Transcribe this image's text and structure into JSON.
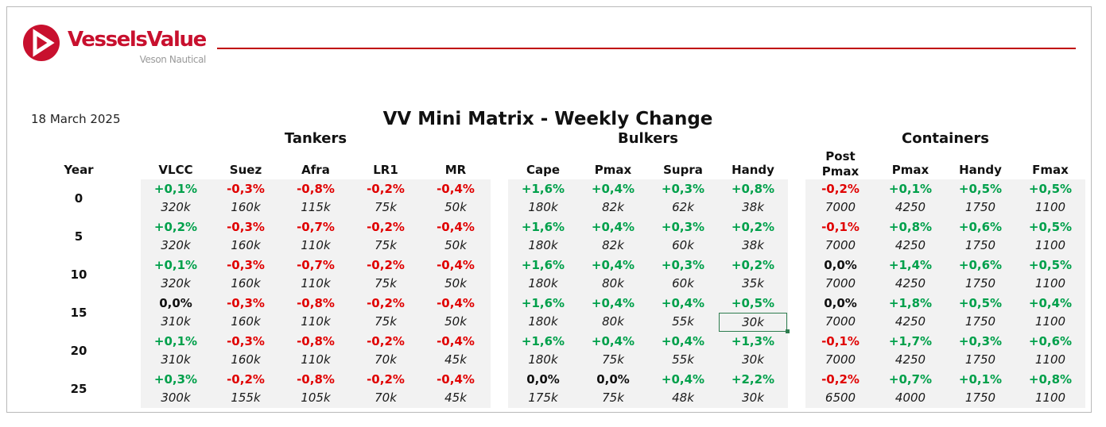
{
  "brand": {
    "name": "VesselsValue",
    "sub": "Veson Nautical",
    "color": "#c8102e"
  },
  "date": "18 March 2025",
  "title": "VV Mini Matrix - Weekly Change",
  "year_header": "Year",
  "colors": {
    "positive": "#00a04b",
    "negative": "#e00000",
    "neutral": "#111111",
    "rule": "#c00000"
  },
  "groups": [
    {
      "name": "Tankers",
      "columns": [
        {
          "label": "VLCC",
          "changes": [
            "+0,1%",
            "+0,2%",
            "+0,1%",
            "0,0%",
            "+0,1%",
            "+0,3%"
          ],
          "sizes": [
            "320k",
            "320k",
            "320k",
            "310k",
            "310k",
            "300k"
          ]
        },
        {
          "label": "Suez",
          "changes": [
            "-0,3%",
            "-0,3%",
            "-0,3%",
            "-0,3%",
            "-0,3%",
            "-0,2%"
          ],
          "sizes": [
            "160k",
            "160k",
            "160k",
            "160k",
            "160k",
            "155k"
          ]
        },
        {
          "label": "Afra",
          "changes": [
            "-0,8%",
            "-0,7%",
            "-0,7%",
            "-0,8%",
            "-0,8%",
            "-0,8%"
          ],
          "sizes": [
            "115k",
            "110k",
            "110k",
            "110k",
            "110k",
            "105k"
          ]
        },
        {
          "label": "LR1",
          "changes": [
            "-0,2%",
            "-0,2%",
            "-0,2%",
            "-0,2%",
            "-0,2%",
            "-0,2%"
          ],
          "sizes": [
            "75k",
            "75k",
            "75k",
            "75k",
            "70k",
            "70k"
          ]
        },
        {
          "label": "MR",
          "changes": [
            "-0,4%",
            "-0,4%",
            "-0,4%",
            "-0,4%",
            "-0,4%",
            "-0,4%"
          ],
          "sizes": [
            "50k",
            "50k",
            "50k",
            "50k",
            "45k",
            "45k"
          ]
        }
      ]
    },
    {
      "name": "Bulkers",
      "columns": [
        {
          "label": "Cape",
          "changes": [
            "+1,6%",
            "+1,6%",
            "+1,6%",
            "+1,6%",
            "+1,6%",
            "0,0%"
          ],
          "sizes": [
            "180k",
            "180k",
            "180k",
            "180k",
            "180k",
            "175k"
          ]
        },
        {
          "label": "Pmax",
          "changes": [
            "+0,4%",
            "+0,4%",
            "+0,4%",
            "+0,4%",
            "+0,4%",
            "0,0%"
          ],
          "sizes": [
            "82k",
            "82k",
            "80k",
            "80k",
            "75k",
            "75k"
          ]
        },
        {
          "label": "Supra",
          "changes": [
            "+0,3%",
            "+0,3%",
            "+0,3%",
            "+0,4%",
            "+0,4%",
            "+0,4%"
          ],
          "sizes": [
            "62k",
            "60k",
            "60k",
            "55k",
            "55k",
            "48k"
          ]
        },
        {
          "label": "Handy",
          "changes": [
            "+0,8%",
            "+0,2%",
            "+0,2%",
            "+0,5%",
            "+1,3%",
            "+2,2%"
          ],
          "sizes": [
            "38k",
            "38k",
            "35k",
            "30k",
            "30k",
            "30k"
          ]
        }
      ]
    },
    {
      "name": "Containers",
      "columns": [
        {
          "label": "Post Pmax",
          "label_line1": "Post",
          "label_line2": "Pmax",
          "changes": [
            "-0,2%",
            "-0,1%",
            "0,0%",
            "0,0%",
            "-0,1%",
            "-0,2%"
          ],
          "sizes": [
            "7000",
            "7000",
            "7000",
            "7000",
            "7000",
            "6500"
          ]
        },
        {
          "label": "Pmax",
          "changes": [
            "+0,1%",
            "+0,8%",
            "+1,4%",
            "+1,8%",
            "+1,7%",
            "+0,7%"
          ],
          "sizes": [
            "4250",
            "4250",
            "4250",
            "4250",
            "4250",
            "4000"
          ]
        },
        {
          "label": "Handy",
          "changes": [
            "+0,5%",
            "+0,6%",
            "+0,6%",
            "+0,5%",
            "+0,3%",
            "+0,1%"
          ],
          "sizes": [
            "1750",
            "1750",
            "1750",
            "1750",
            "1750",
            "1750"
          ]
        },
        {
          "label": "Fmax",
          "changes": [
            "+0,5%",
            "+0,5%",
            "+0,5%",
            "+0,4%",
            "+0,6%",
            "+0,8%"
          ],
          "sizes": [
            "1100",
            "1100",
            "1100",
            "1100",
            "1100",
            "1100"
          ]
        }
      ]
    }
  ],
  "years": [
    "0",
    "5",
    "10",
    "15",
    "20",
    "25"
  ]
}
